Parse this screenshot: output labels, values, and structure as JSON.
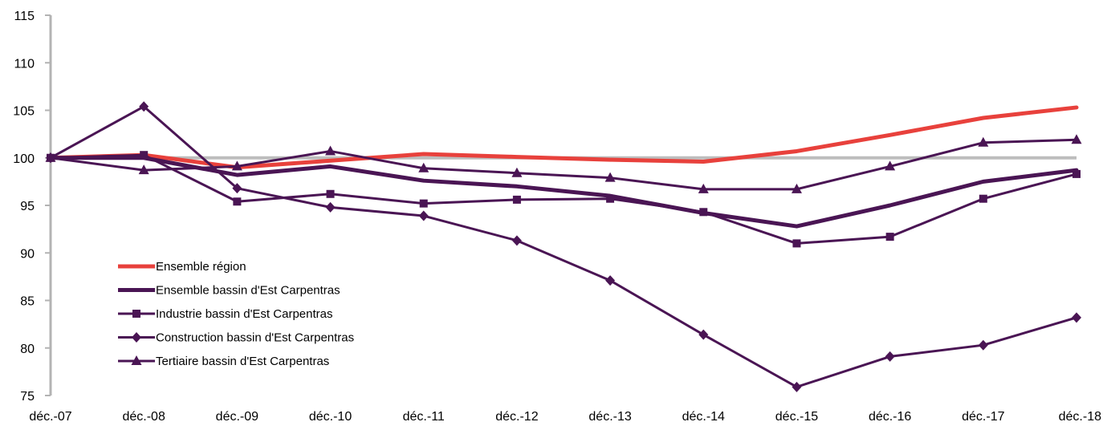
{
  "chart_data": {
    "type": "line",
    "title": "",
    "xlabel": "",
    "ylabel": "",
    "categories": [
      "déc.-07",
      "déc.-08",
      "déc.-09",
      "déc.-10",
      "déc.-11",
      "déc.-12",
      "déc.-13",
      "déc.-14",
      "déc.-15",
      "déc.-16",
      "déc.-17",
      "déc.-18"
    ],
    "y_ticks": [
      75,
      80,
      85,
      90,
      95,
      100,
      105,
      110,
      115
    ],
    "ylim": [
      75,
      115
    ],
    "reference_line": 100,
    "grid": false,
    "legend_position": "left, inside plot",
    "series": [
      {
        "name": "Ensemble région",
        "color": "#e8413c",
        "marker": "none",
        "width": "thick",
        "values": [
          100,
          100.3,
          99.0,
          99.7,
          100.4,
          100.1,
          99.8,
          99.6,
          100.7,
          102.4,
          104.2,
          105.3
        ]
      },
      {
        "name": "Ensemble bassin d'Est Carpentras",
        "color": "#4a1554",
        "marker": "none",
        "width": "thick",
        "values": [
          100,
          100.0,
          98.2,
          99.1,
          97.6,
          97.0,
          96.0,
          94.2,
          92.8,
          95.0,
          97.5,
          98.7
        ]
      },
      {
        "name": "Industrie bassin d'Est Carpentras",
        "color": "#4a1554",
        "marker": "square",
        "width": "normal",
        "values": [
          100,
          100.3,
          95.4,
          96.2,
          95.2,
          95.6,
          95.7,
          94.3,
          91.0,
          91.7,
          95.7,
          98.3
        ]
      },
      {
        "name": "Construction bassin d'Est Carpentras",
        "color": "#4a1554",
        "marker": "diamond",
        "width": "normal",
        "values": [
          100,
          105.4,
          96.8,
          94.8,
          93.9,
          91.3,
          87.1,
          81.4,
          75.9,
          79.1,
          80.3,
          83.2
        ]
      },
      {
        "name": "Tertiaire bassin d'Est Carpentras",
        "color": "#4a1554",
        "marker": "triangle",
        "width": "normal",
        "values": [
          100,
          98.7,
          99.1,
          100.7,
          98.9,
          98.4,
          97.9,
          96.7,
          96.7,
          99.1,
          101.6,
          101.9
        ]
      }
    ]
  }
}
